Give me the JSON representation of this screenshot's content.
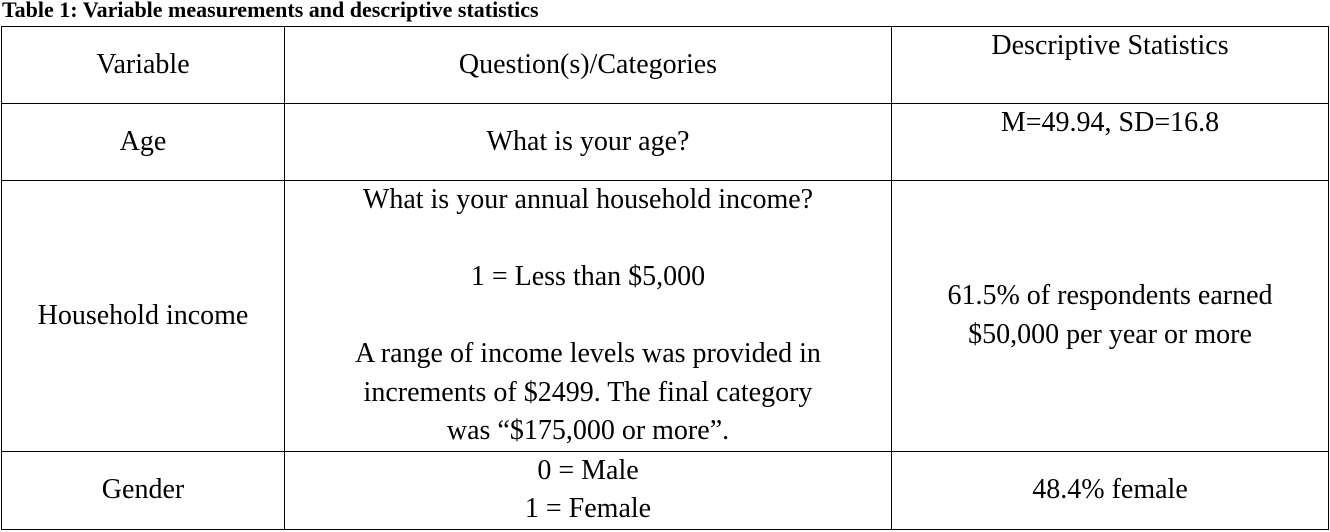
{
  "caption": "Table 1: Variable measurements and descriptive statistics",
  "headers": {
    "variable": "Variable",
    "questions": "Question(s)/Categories",
    "stats": "Descriptive Statistics"
  },
  "rows": [
    {
      "variable": "Age",
      "question": "What is your age?",
      "stats": "M=49.94, SD=16.8"
    },
    {
      "variable": "Household income",
      "question_lines": [
        "What is your annual household income?",
        "1 = Less than $5,000",
        "A range of income levels was provided in",
        "increments of $2499.  The final category",
        "was “$175,000 or more”."
      ],
      "stats_lines": [
        "61.5% of respondents earned",
        "$50,000 per year or more"
      ]
    },
    {
      "variable": "Gender",
      "question_lines": [
        "0 = Male",
        "1 = Female"
      ],
      "stats": "48.4% female"
    }
  ]
}
